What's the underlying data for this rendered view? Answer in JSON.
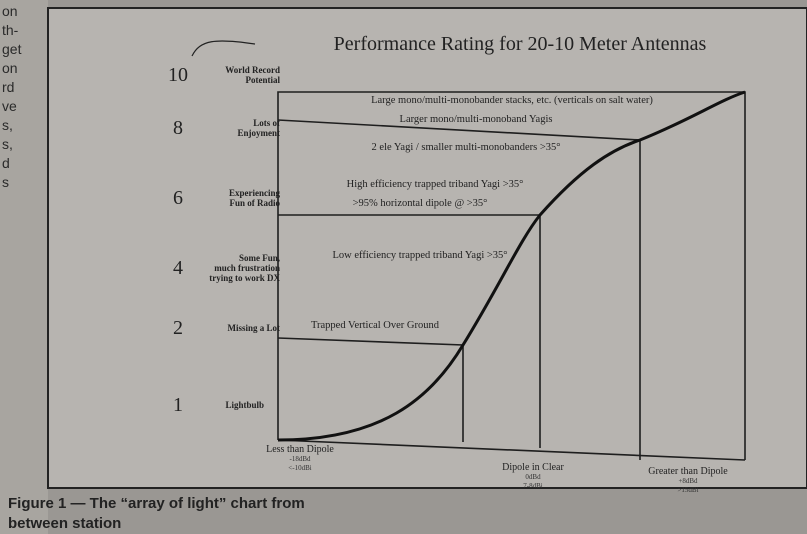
{
  "margin_text": [
    "on",
    "th-",
    "get",
    "on",
    "rd",
    "ve",
    "s,",
    "s,",
    "d",
    "s"
  ],
  "figure": {
    "title": "Performance Rating for 20-10 Meter Antennas",
    "levels": [
      {
        "number": "10",
        "label": [
          "World Record",
          "Potential"
        ]
      },
      {
        "number": "8",
        "label": [
          "Lots of",
          "Enjoyment"
        ]
      },
      {
        "number": "6",
        "label": [
          "Experiencing",
          "Fun of Radio"
        ]
      },
      {
        "number": "4",
        "label": [
          "Some Fun,",
          "much frustration",
          "trying to work DX"
        ]
      },
      {
        "number": "2",
        "label": [
          "Missing a Lot"
        ]
      },
      {
        "number": "1",
        "label": [
          "Lightbulb"
        ]
      }
    ],
    "regions": [
      "Large mono/multi-monobander stacks, etc. (verticals on salt water)",
      "Larger mono/multi-monoband Yagis",
      "2 ele Yagi / smaller multi-monobanders >35°",
      "High efficiency trapped triband Yagi >35°",
      ">95% horizontal dipole @ >35°",
      "Low efficiency trapped triband Yagi >35°",
      "Trapped Vertical Over Ground"
    ],
    "x_labels": [
      [
        "Less than Dipole",
        "-18dBd",
        "<-10dBi"
      ],
      [
        "Dipole in Clear",
        "0dBd",
        "7-8dBi"
      ],
      [
        "Greater than Dipole",
        "+8dBd",
        ">15dBi"
      ]
    ]
  },
  "caption": [
    "Figure 1 — The “array of light” chart from",
    "between station"
  ]
}
